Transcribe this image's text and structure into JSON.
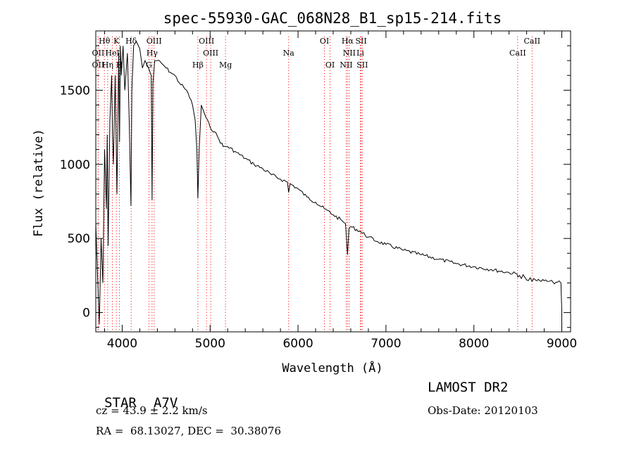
{
  "chart_data": {
    "type": "line",
    "title": "spec-55930-GAC_068N28_B1_sp15-214.fits",
    "xlabel": "Wavelength (Å)",
    "ylabel": "Flux (relative)",
    "xlim": [
      3700,
      9100
    ],
    "ylim": [
      -130,
      1900
    ],
    "xticks": [
      4000,
      5000,
      6000,
      7000,
      8000,
      9000
    ],
    "yticks": [
      0,
      500,
      1000,
      1500
    ],
    "series": [
      {
        "x": [
          3700,
          3720,
          3740,
          3760,
          3780,
          3800,
          3820,
          3830,
          3840,
          3860,
          3880,
          3890,
          3900,
          3920,
          3940,
          3960,
          3970,
          3980,
          3990,
          4010,
          4030,
          4060,
          4080,
          4100,
          4110,
          4130,
          4160,
          4200,
          4230,
          4260,
          4300,
          4330,
          4340,
          4350,
          4370,
          4400,
          4450,
          4500,
          4550,
          4600,
          4650,
          4700,
          4750,
          4800,
          4830,
          4850,
          4861,
          4875,
          4900,
          4950,
          5000,
          5050,
          5100,
          5150,
          5200,
          5300,
          5400,
          5500,
          5600,
          5700,
          5800,
          5880,
          5893,
          5910,
          6000,
          6100,
          6200,
          6300,
          6400,
          6500,
          6540,
          6563,
          6580,
          6600,
          6700,
          6800,
          6900,
          7000,
          7200,
          7400,
          7600,
          7800,
          8000,
          8200,
          8400,
          8490,
          8500,
          8520,
          8540,
          8560,
          8600,
          8640,
          8662,
          8680,
          8700,
          8750,
          8800,
          8850,
          8900,
          8950,
          8990,
          9000
        ],
        "y": [
          600,
          250,
          -80,
          500,
          200,
          1100,
          700,
          1200,
          450,
          1300,
          1600,
          1200,
          1000,
          1600,
          800,
          1750,
          1150,
          1800,
          1600,
          1800,
          1500,
          1750,
          1300,
          720,
          1500,
          1800,
          1830,
          1780,
          1650,
          1700,
          1650,
          1600,
          760,
          1550,
          1700,
          1700,
          1680,
          1650,
          1620,
          1600,
          1550,
          1520,
          1480,
          1400,
          1300,
          1100,
          770,
          1100,
          1400,
          1320,
          1250,
          1220,
          1170,
          1120,
          1120,
          1080,
          1040,
          1000,
          970,
          930,
          900,
          880,
          810,
          870,
          835,
          780,
          745,
          700,
          660,
          620,
          600,
          390,
          570,
          580,
          550,
          510,
          480,
          460,
          420,
          390,
          360,
          330,
          310,
          290,
          270,
          260,
          240,
          250,
          230,
          255,
          220,
          235,
          210,
          230,
          220,
          215,
          215,
          210,
          205,
          205,
          200,
          10
        ]
      }
    ],
    "spectral_lines": [
      {
        "label": "Hθ",
        "x": 3798,
        "row": 0
      },
      {
        "label": "K",
        "x": 3934,
        "row": 0
      },
      {
        "label": "H",
        "x": 3969,
        "row": 2
      },
      {
        "label": "Hδ",
        "x": 4102,
        "row": 0
      },
      {
        "label": "OIII",
        "x": 4363,
        "row": 0
      },
      {
        "label": "Hγ",
        "x": 4340,
        "row": 1
      },
      {
        "label": "G",
        "x": 4304,
        "row": 2
      },
      {
        "label": "OII",
        "x": 3727,
        "row": 1
      },
      {
        "label": "HeI",
        "x": 3889,
        "row": 1
      },
      {
        "label": "OII",
        "x": 3727,
        "row": 2
      },
      {
        "label": "Hη",
        "x": 3835,
        "row": 2
      },
      {
        "label": "OIII",
        "x": 4959,
        "row": 0
      },
      {
        "label": "OIII",
        "x": 5007,
        "row": 1
      },
      {
        "label": "Hβ",
        "x": 4861,
        "row": 2
      },
      {
        "label": "Mg",
        "x": 5175,
        "row": 2
      },
      {
        "label": "Na",
        "x": 5893,
        "row": 1
      },
      {
        "label": "OI",
        "x": 6300,
        "row": 0
      },
      {
        "label": "OI",
        "x": 6364,
        "row": 2
      },
      {
        "label": "Hα",
        "x": 6563,
        "row": 0
      },
      {
        "label": "SII",
        "x": 6717,
        "row": 0
      },
      {
        "label": "NII",
        "x": 6583,
        "row": 1
      },
      {
        "label": "Li",
        "x": 6708,
        "row": 1
      },
      {
        "label": "NII",
        "x": 6548,
        "row": 2
      },
      {
        "label": "SII",
        "x": 6731,
        "row": 2
      },
      {
        "label": "CaII",
        "x": 8662,
        "row": 0
      },
      {
        "label": "CaII",
        "x": 8498,
        "row": 1
      }
    ],
    "grid": false
  },
  "info": {
    "class_label": "STAR",
    "subclass": "A7V",
    "survey": "LAMOST DR2",
    "cz": "cz = 43.9 ± 2.2 km/s",
    "obs_date": "Obs-Date: 20120103",
    "radec": "RA =  68.13027, DEC =  30.38076"
  }
}
